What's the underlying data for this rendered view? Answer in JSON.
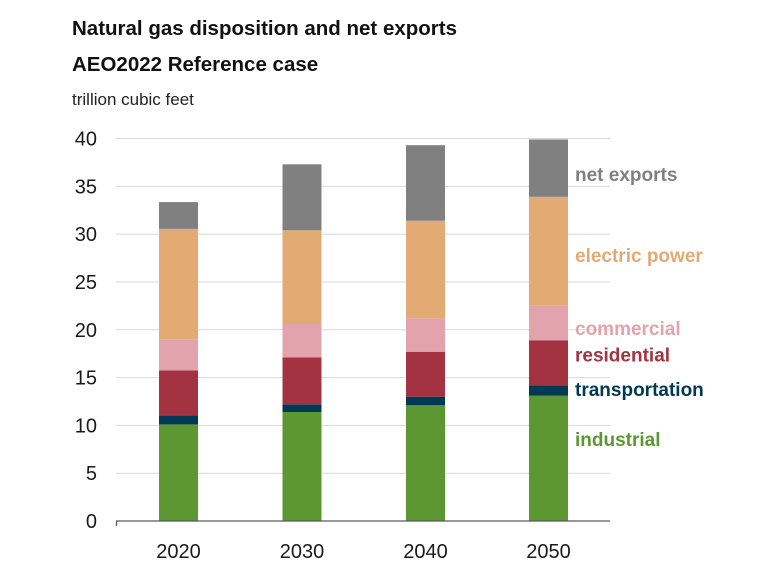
{
  "chart_data": {
    "type": "bar",
    "stacked": true,
    "title": "Natural gas disposition and net exports",
    "subtitle": "AEO2022 Reference case",
    "ylabel": "trillion cubic feet",
    "xlabel": "",
    "ylim": [
      0,
      40
    ],
    "yticks": [
      0,
      5,
      10,
      15,
      20,
      25,
      30,
      35,
      40
    ],
    "grid": true,
    "legend": "right (direct labels)",
    "categories": [
      "2020",
      "2030",
      "2040",
      "2050"
    ],
    "series": [
      {
        "name": "industrial",
        "color": "#5D9732",
        "values": [
          10.1,
          11.4,
          12.1,
          13.1
        ]
      },
      {
        "name": "transportation",
        "color": "#003953",
        "values": [
          0.95,
          0.8,
          0.9,
          1.1
        ]
      },
      {
        "name": "residential",
        "color": "#A33340",
        "values": [
          4.7,
          4.9,
          4.7,
          4.7
        ]
      },
      {
        "name": "commercial",
        "color": "#E2A3AD",
        "values": [
          3.25,
          3.5,
          3.5,
          3.6
        ]
      },
      {
        "name": "electric power",
        "color": "#E3AA74",
        "values": [
          11.55,
          9.8,
          10.2,
          11.4
        ]
      },
      {
        "name": "net exports",
        "color": "#808080",
        "values": [
          2.8,
          6.9,
          7.9,
          6.0
        ]
      }
    ],
    "label_positions_value": {
      "net exports": 36.3,
      "electric power": 27.8,
      "commercial": 20.2,
      "residential": 17.4,
      "transportation": 13.8,
      "industrial": 8.6
    }
  }
}
